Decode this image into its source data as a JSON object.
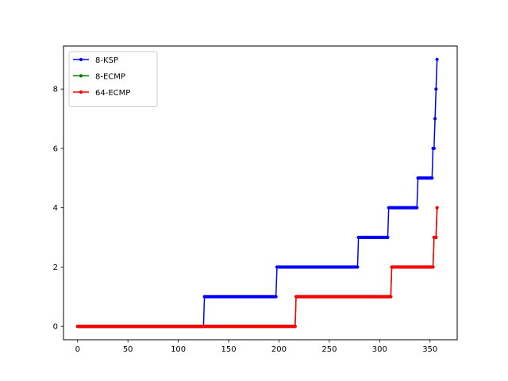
{
  "chart_data": {
    "type": "line",
    "title": "",
    "xlabel": "",
    "ylabel": "",
    "xlim": [
      -14,
      377
    ],
    "ylim": [
      -0.45,
      9.45
    ],
    "xticks": [
      0,
      50,
      100,
      150,
      200,
      250,
      300,
      350
    ],
    "yticks": [
      0,
      2,
      4,
      6,
      8
    ],
    "grid": false,
    "legend_position": "top-left",
    "series": [
      {
        "name": "8-KSP",
        "color": "#0000ff",
        "steps": [
          {
            "from": 0,
            "to": 125,
            "y": 0
          },
          {
            "from": 126,
            "to": 197,
            "y": 1
          },
          {
            "from": 198,
            "to": 278,
            "y": 2
          },
          {
            "from": 279,
            "to": 308,
            "y": 3
          },
          {
            "from": 309,
            "to": 337,
            "y": 4
          },
          {
            "from": 338,
            "to": 352,
            "y": 5
          },
          {
            "from": 353,
            "to": 354,
            "y": 6
          },
          {
            "from": 355,
            "to": 355,
            "y": 7
          },
          {
            "from": 356,
            "to": 356,
            "y": 8
          },
          {
            "from": 357,
            "to": 357,
            "y": 9
          }
        ]
      },
      {
        "name": "8-ECMP",
        "color": "#008000",
        "steps": [
          {
            "from": 0,
            "to": 216,
            "y": 0
          },
          {
            "from": 217,
            "to": 311,
            "y": 1
          },
          {
            "from": 312,
            "to": 353,
            "y": 2
          },
          {
            "from": 354,
            "to": 356,
            "y": 3
          },
          {
            "from": 357,
            "to": 357,
            "y": 4
          }
        ]
      },
      {
        "name": "64-ECMP",
        "color": "#ff0000",
        "steps": [
          {
            "from": 0,
            "to": 216,
            "y": 0
          },
          {
            "from": 217,
            "to": 311,
            "y": 1
          },
          {
            "from": 312,
            "to": 353,
            "y": 2
          },
          {
            "from": 354,
            "to": 356,
            "y": 3
          },
          {
            "from": 357,
            "to": 357,
            "y": 4
          }
        ]
      }
    ]
  }
}
